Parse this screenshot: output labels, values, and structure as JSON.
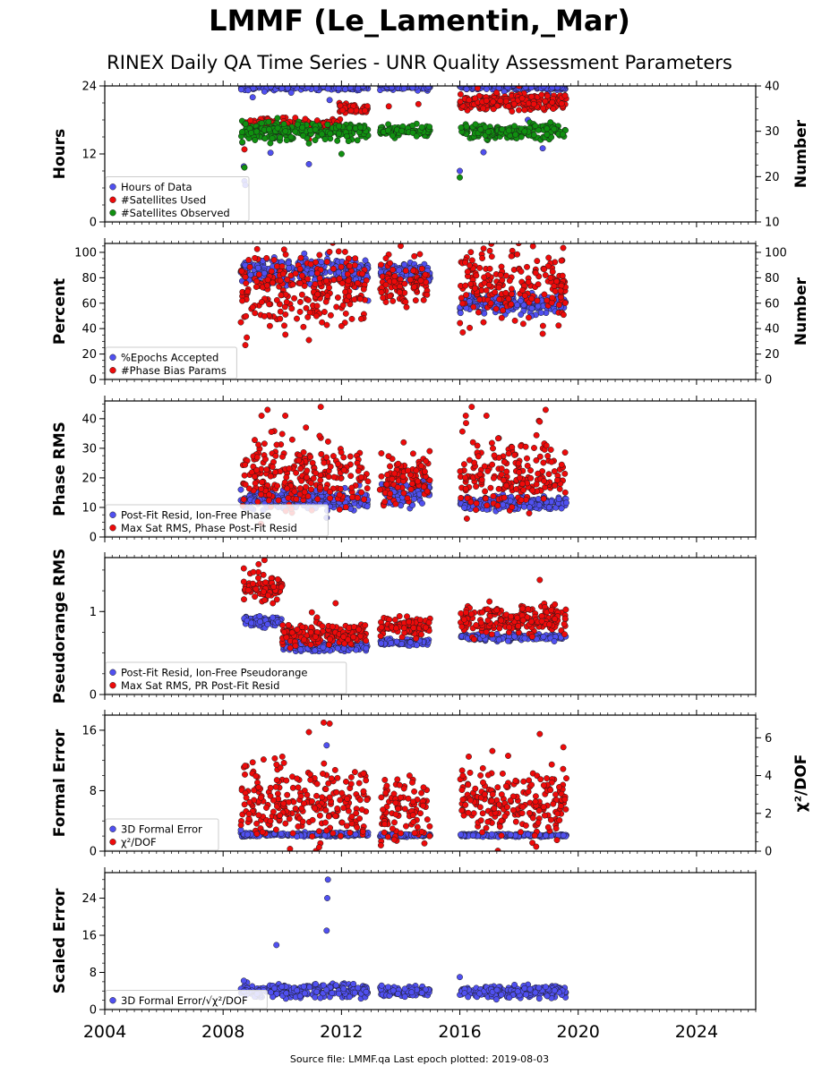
{
  "page": {
    "title": "LMMF (Le_Lamentin,_Mar)",
    "subtitle": "RINEX Daily QA Time Series - UNR Quality Assessment Parameters",
    "footer": "Source file: LMMF.qa Last epoch plotted: 2019-08-03"
  },
  "colors": {
    "blue": "#5050f0",
    "red": "#ee0a0a",
    "green": "#109010",
    "edge": "#1a1a1a"
  },
  "chart_data": [
    {
      "type": "scatter",
      "ylabel": "Hours",
      "ylabel_right": "Number",
      "xlim": [
        2004,
        2026
      ],
      "ylim": [
        0,
        24
      ],
      "yticks": [
        0,
        12,
        24
      ],
      "ylim_right": [
        10,
        40
      ],
      "yticks_right": [
        10,
        20,
        30,
        40
      ],
      "grid": false,
      "legend_position": "lower-left",
      "series": [
        {
          "name": "Hours of Data",
          "color": "blue",
          "axis": "left",
          "segments": [
            [
              2008.6,
              2012.9,
              23.8,
              0.25
            ],
            [
              2013.3,
              2015.0,
              23.8,
              0.25
            ],
            [
              2016.0,
              2019.6,
              23.8,
              0.25
            ]
          ],
          "outliers": [
            [
              2008.65,
              14.0
            ],
            [
              2008.7,
              9.8
            ],
            [
              2008.72,
              7.2
            ],
            [
              2008.75,
              6.5
            ],
            [
              2009.0,
              22.0
            ],
            [
              2009.6,
              12.2
            ],
            [
              2009.4,
              23.0
            ],
            [
              2010.3,
              22.8
            ],
            [
              2010.9,
              10.2
            ],
            [
              2011.6,
              21.5
            ],
            [
              2016.0,
              9.0
            ],
            [
              2016.8,
              12.3
            ],
            [
              2017.5,
              23.0
            ],
            [
              2018.3,
              18.0
            ],
            [
              2018.8,
              13.0
            ],
            [
              2019.0,
              22.6
            ]
          ]
        },
        {
          "name": "#Satellites Used",
          "color": "red",
          "axis": "right",
          "segments": [
            [
              2008.7,
              2012.0,
              31.5,
              0.6
            ],
            [
              2011.9,
              2012.9,
              35.0,
              0.5
            ],
            [
              2016.0,
              2019.6,
              36.5,
              0.9
            ]
          ],
          "outliers": [
            [
              2008.72,
              26.0
            ],
            [
              2010.9,
              28.2
            ],
            [
              2013.6,
              35.5
            ],
            [
              2014.3,
              31.0
            ],
            [
              2014.6,
              36.0
            ],
            [
              2016.6,
              39.5
            ],
            [
              2018.0,
              40.0
            ],
            [
              2018.5,
              36.0
            ]
          ]
        },
        {
          "name": "#Satellites Observed",
          "color": "green",
          "axis": "right",
          "segments": [
            [
              2008.6,
              2012.9,
              30.0,
              1.0
            ],
            [
              2013.3,
              2015.0,
              30.0,
              0.6
            ],
            [
              2016.0,
              2019.6,
              30.0,
              0.8
            ]
          ],
          "outliers": [
            [
              2008.72,
              22.0
            ],
            [
              2010.9,
              27.3
            ],
            [
              2012.0,
              25.0
            ],
            [
              2016.0,
              19.8
            ]
          ]
        }
      ]
    },
    {
      "type": "scatter",
      "ylabel": "Percent",
      "ylabel_right": "Number",
      "xlim": [
        2004,
        2026
      ],
      "ylim": [
        0,
        107
      ],
      "yticks": [
        0,
        20,
        40,
        60,
        80,
        100
      ],
      "ylim_right": [
        0,
        107
      ],
      "yticks_right": [
        0,
        20,
        40,
        60,
        80,
        100
      ],
      "grid": false,
      "legend_position": "lower-left",
      "series": [
        {
          "name": "%Epochs Accepted",
          "color": "blue",
          "axis": "left",
          "segments": [
            [
              2008.6,
              2012.9,
              85,
              5
            ],
            [
              2013.3,
              2015.0,
              84,
              4
            ],
            [
              2016.0,
              2019.6,
              60,
              4
            ]
          ],
          "outliers": [
            [
              2012.7,
              64
            ],
            [
              2012.9,
              62
            ]
          ]
        },
        {
          "name": "#Phase Bias Params",
          "color": "red",
          "axis": "right",
          "segments": [
            [
              2008.6,
              2012.9,
              72,
              14
            ],
            [
              2013.3,
              2015.0,
              76,
              10
            ],
            [
              2016.0,
              2019.6,
              75,
              15
            ]
          ],
          "outliers": [
            [
              2008.6,
              45
            ],
            [
              2008.75,
              27
            ],
            [
              2008.8,
              33
            ],
            [
              2010.9,
              31
            ],
            [
              2012.0,
              42
            ],
            [
              2014.0,
              105
            ],
            [
              2016.1,
              37
            ],
            [
              2016.8,
              45
            ],
            [
              2018.8,
              36
            ]
          ]
        }
      ]
    },
    {
      "type": "scatter",
      "ylabel": "Phase RMS",
      "xlim": [
        2004,
        2026
      ],
      "ylim": [
        0,
        46
      ],
      "yticks": [
        0,
        10,
        20,
        30,
        40
      ],
      "grid": false,
      "legend_position": "lower-left",
      "series": [
        {
          "name": "Post-Fit Resid, Ion-Free Phase",
          "color": "blue",
          "axis": "left",
          "segments": [
            [
              2008.6,
              2012.9,
              12.5,
              1.5
            ],
            [
              2013.3,
              2015.0,
              15,
              2
            ],
            [
              2016.0,
              2019.6,
              11.5,
              1.2
            ]
          ],
          "outliers": [
            [
              2011.5,
              6.5
            ],
            [
              2008.6,
              16
            ],
            [
              2012.6,
              17.5
            ]
          ]
        },
        {
          "name": "Max Sat RMS, Phase Post-Fit Resid",
          "color": "red",
          "axis": "left",
          "segments": [
            [
              2008.6,
              2012.9,
              21,
              6
            ],
            [
              2013.3,
              2015.0,
              20,
              4
            ],
            [
              2016.0,
              2019.6,
              21,
              6
            ]
          ],
          "outliers": [
            [
              2009.3,
              41
            ],
            [
              2009.5,
              43
            ],
            [
              2010.1,
              41
            ],
            [
              2010.8,
              37
            ],
            [
              2011.3,
              44
            ],
            [
              2014.1,
              32
            ],
            [
              2016.2,
              41
            ],
            [
              2016.4,
              44
            ],
            [
              2016.9,
              41
            ],
            [
              2018.7,
              39
            ],
            [
              2018.9,
              43
            ]
          ]
        }
      ]
    },
    {
      "type": "scatter",
      "ylabel": "Pseudorange RMS",
      "xlim": [
        2004,
        2026
      ],
      "ylim": [
        0,
        1.65
      ],
      "yticks": [
        0,
        1
      ],
      "grid": false,
      "legend_position": "lower-left",
      "series": [
        {
          "name": "Post-Fit Resid, Ion-Free Pseudorange",
          "color": "blue",
          "axis": "left",
          "segments": [
            [
              2008.7,
              2010.0,
              0.88,
              0.03
            ],
            [
              2010.0,
              2012.9,
              0.58,
              0.03
            ],
            [
              2013.3,
              2015.0,
              0.63,
              0.02
            ],
            [
              2016.0,
              2019.6,
              0.69,
              0.02
            ]
          ],
          "outliers": []
        },
        {
          "name": "Max Sat RMS, PR Post-Fit Resid",
          "color": "red",
          "axis": "left",
          "segments": [
            [
              2008.7,
              2010.0,
              1.28,
              0.08
            ],
            [
              2010.0,
              2012.9,
              0.73,
              0.07
            ],
            [
              2013.3,
              2015.0,
              0.82,
              0.06
            ],
            [
              2016.0,
              2019.6,
              0.9,
              0.09
            ]
          ],
          "outliers": [
            [
              2008.7,
              1.52
            ],
            [
              2009.2,
              1.57
            ],
            [
              2009.4,
              1.62
            ],
            [
              2011.0,
              0.99
            ],
            [
              2011.8,
              1.1
            ],
            [
              2017.0,
              1.12
            ],
            [
              2018.7,
              1.38
            ]
          ]
        }
      ]
    },
    {
      "type": "scatter",
      "ylabel": "Formal Error",
      "ylabel_right": "χ²/DOF",
      "xlim": [
        2004,
        2026
      ],
      "ylim": [
        0,
        18
      ],
      "yticks": [
        0,
        8,
        16
      ],
      "ylim_right": [
        0,
        7.2
      ],
      "yticks_right": [
        0,
        2,
        4,
        6
      ],
      "grid": false,
      "legend_position": "lower-left",
      "series": [
        {
          "name": "3D Formal Error",
          "color": "blue",
          "axis": "left",
          "segments": [
            [
              2008.6,
              2012.9,
              2.2,
              0.12
            ],
            [
              2013.3,
              2015.0,
              2.1,
              0.1
            ],
            [
              2016.0,
              2019.6,
              2.1,
              0.1
            ]
          ],
          "outliers": [
            [
              2011.5,
              14.0
            ],
            [
              2008.6,
              2.8
            ]
          ]
        },
        {
          "name": "χ²/DOF",
          "color": "red",
          "axis": "right",
          "segments": [
            [
              2008.6,
              2012.9,
              2.6,
              1.0
            ],
            [
              2013.3,
              2015.0,
              2.2,
              0.8
            ],
            [
              2016.0,
              2019.6,
              2.6,
              0.9
            ]
          ],
          "outliers": [
            [
              2009.0,
              4.7
            ],
            [
              2010.0,
              5.0
            ],
            [
              2010.9,
              6.3
            ],
            [
              2011.4,
              6.8
            ],
            [
              2011.6,
              6.75
            ],
            [
              2012.6,
              3.6
            ],
            [
              2013.4,
              2.2
            ],
            [
              2014.3,
              4.0
            ],
            [
              2016.3,
              5.0
            ],
            [
              2017.1,
              5.3
            ],
            [
              2018.7,
              6.2
            ],
            [
              2019.5,
              5.5
            ]
          ]
        }
      ]
    },
    {
      "type": "scatter",
      "ylabel": "Scaled Error",
      "xlim": [
        2004,
        2026
      ],
      "ylim": [
        0,
        29.5
      ],
      "yticks": [
        0,
        8,
        16,
        24
      ],
      "xticks": [
        2004,
        2008,
        2012,
        2016,
        2020,
        2024
      ],
      "grid": false,
      "legend_position": "lower-left",
      "series": [
        {
          "name": "3D Formal Error/√χ²/DOF",
          "color": "blue",
          "axis": "left",
          "segments": [
            [
              2008.6,
              2012.9,
              4.1,
              0.8
            ],
            [
              2013.3,
              2015.0,
              3.9,
              0.6
            ],
            [
              2016.0,
              2019.6,
              3.9,
              0.7
            ]
          ],
          "outliers": [
            [
              2009.8,
              13.9
            ],
            [
              2011.5,
              17.0
            ],
            [
              2011.52,
              24.0
            ],
            [
              2011.54,
              28.0
            ],
            [
              2016.0,
              7.0
            ],
            [
              2008.7,
              6.2
            ]
          ]
        }
      ]
    }
  ]
}
